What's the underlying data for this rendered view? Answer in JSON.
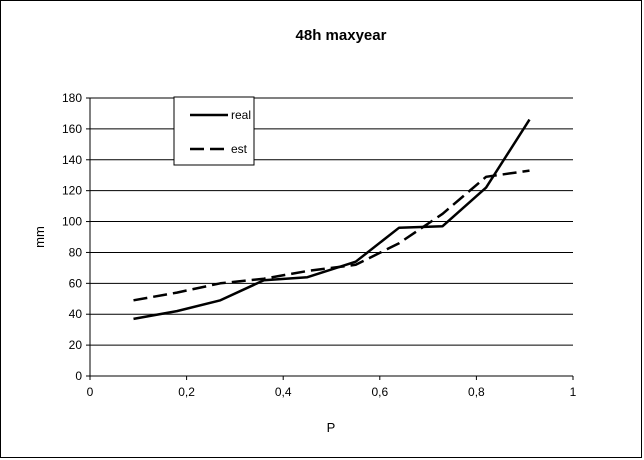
{
  "chart_data": {
    "type": "line",
    "title": "48h maxyear",
    "xlabel": "P",
    "ylabel": "mm",
    "xlim": [
      0,
      1
    ],
    "ylim": [
      0,
      180
    ],
    "x_ticks": [
      "0",
      "0,2",
      "0,4",
      "0,6",
      "0,8",
      "1"
    ],
    "x_tick_values": [
      0,
      0.2,
      0.4,
      0.6,
      0.8,
      1
    ],
    "y_ticks": [
      "0",
      "20",
      "40",
      "60",
      "80",
      "100",
      "120",
      "140",
      "160",
      "180"
    ],
    "y_tick_values": [
      0,
      20,
      40,
      60,
      80,
      100,
      120,
      140,
      160,
      180
    ],
    "grid": "horizontal",
    "legend_position": "top-left",
    "series": [
      {
        "name": "real",
        "style": "solid",
        "color": "#000000",
        "x": [
          0.09,
          0.18,
          0.27,
          0.36,
          0.45,
          0.55,
          0.64,
          0.73,
          0.82,
          0.91
        ],
        "y": [
          37,
          42,
          49,
          62,
          64,
          74,
          96,
          97,
          122,
          166
        ]
      },
      {
        "name": "est",
        "style": "dashed",
        "color": "#000000",
        "x": [
          0.09,
          0.18,
          0.27,
          0.36,
          0.45,
          0.55,
          0.64,
          0.73,
          0.82,
          0.91
        ],
        "y": [
          49,
          54,
          60,
          63,
          68,
          72,
          86,
          105,
          129,
          133
        ]
      }
    ]
  }
}
